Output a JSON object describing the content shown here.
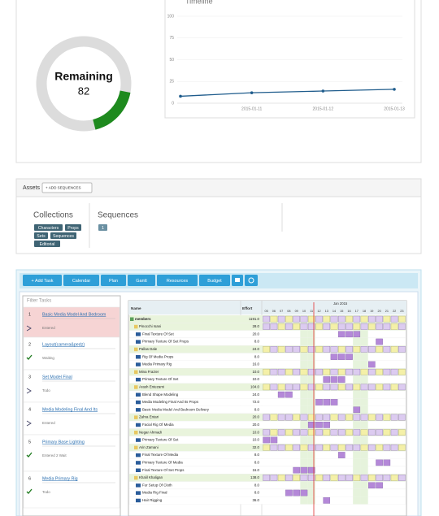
{
  "donut": {
    "label": "Remaining",
    "values": [
      82,
      18
    ],
    "colors": [
      "#dcdcdc",
      "#1e8a1e"
    ]
  },
  "chart_data": {
    "type": "line",
    "title": "Timeline",
    "categories": [
      null,
      "2015-01-11",
      "2015-01-12",
      "2015-01-13"
    ],
    "values": [
      8,
      12,
      14,
      16
    ],
    "color": "#1f5c8c",
    "ylim": [
      0,
      100
    ],
    "yticks": [
      0,
      25,
      50,
      75,
      100
    ],
    "grid": true
  },
  "assets": {
    "title": "Assets",
    "button": "+ ADD SEQUENCES",
    "collections": {
      "title": "Collections",
      "tags": [
        "Characters",
        "Props",
        "Sets",
        "Sequences",
        "Editorial"
      ]
    },
    "sequences": {
      "title": "Sequences",
      "badge": "1"
    }
  },
  "toolbar": [
    "+ Add Task",
    "Calendar",
    "Plan",
    "Gantt",
    "Resources",
    "Budget"
  ],
  "tasks": {
    "title": "Filter Tasks",
    "items": [
      {
        "number": "1",
        "name": "Basic Media Model And Bedroom",
        "status": "Entered"
      },
      {
        "number": "2",
        "name": "Layout(camera&pedz)",
        "status": "Waiting"
      },
      {
        "number": "3",
        "name": "Set Model Final",
        "status": "Todo"
      },
      {
        "number": "4",
        "name": "Media Modeling Final And Its",
        "status": "Entered"
      },
      {
        "number": "5",
        "name": "Primary Base Lighting",
        "status": "Entered 2 Wait"
      },
      {
        "number": "6",
        "name": "Media Primary Rig",
        "status": "Todo"
      }
    ]
  },
  "resources": {
    "headers": [
      "Name",
      "Effort"
    ],
    "month": "Jan 2015",
    "days": [
      "05",
      "06",
      "07",
      "08",
      "09",
      "10",
      "11",
      "12",
      "13",
      "14",
      "15",
      "16",
      "17",
      "18",
      "19",
      "20",
      "21",
      "22",
      "23"
    ],
    "root": {
      "name": "members",
      "effort": "1191.0"
    },
    "people": [
      {
        "name": "Pinocchi Isani",
        "effort": "28.0",
        "tasks": [
          {
            "name": "Final Texture Of Set",
            "effort": "20.0"
          },
          {
            "name": "Primary Texture Of Set Props",
            "effort": "8.0"
          }
        ]
      },
      {
        "name": "Pallas Dale",
        "effort": "24.0",
        "tasks": [
          {
            "name": "Rig Of Media Props",
            "effort": "8.0"
          },
          {
            "name": "Media Primary Rig",
            "effort": "16.0"
          }
        ]
      },
      {
        "name": "Mina Frazier",
        "effort": "10.0",
        "tasks": [
          {
            "name": "Primary Texture Of Set",
            "effort": "10.0"
          }
        ]
      },
      {
        "name": "Arash Entezami",
        "effort": "104.0",
        "tasks": [
          {
            "name": "Blend Shape Modeling",
            "effort": "24.0"
          },
          {
            "name": "Media Modeling Final And Its Props",
            "effort": "72.0"
          },
          {
            "name": "Basic Media Model And Bedroom Delivery",
            "effort": "8.0"
          }
        ]
      },
      {
        "name": "Zahra Entari",
        "effort": "20.0",
        "tasks": [
          {
            "name": "Facial Rig Of Media",
            "effort": "20.0"
          }
        ]
      },
      {
        "name": "Negar Ahmadi",
        "effort": "10.0",
        "tasks": [
          {
            "name": "Primary Texture Of Set",
            "effort": "10.0"
          }
        ]
      },
      {
        "name": "Arin Zamani",
        "effort": "32.0",
        "tasks": [
          {
            "name": "Final Texture Of Media",
            "effort": "8.0"
          },
          {
            "name": "Primary Texture Of Media",
            "effort": "8.0"
          },
          {
            "name": "Final Texture Of Set Props",
            "effort": "16.0"
          }
        ]
      },
      {
        "name": "Khalil Khaligan",
        "effort": "138.0",
        "tasks": [
          {
            "name": "Fur Setup Of Cloth",
            "effort": "8.0"
          },
          {
            "name": "Media Rig Final",
            "effort": "8.0"
          },
          {
            "name": "Hair Rigging",
            "effort": "36.0"
          }
        ]
      }
    ]
  }
}
